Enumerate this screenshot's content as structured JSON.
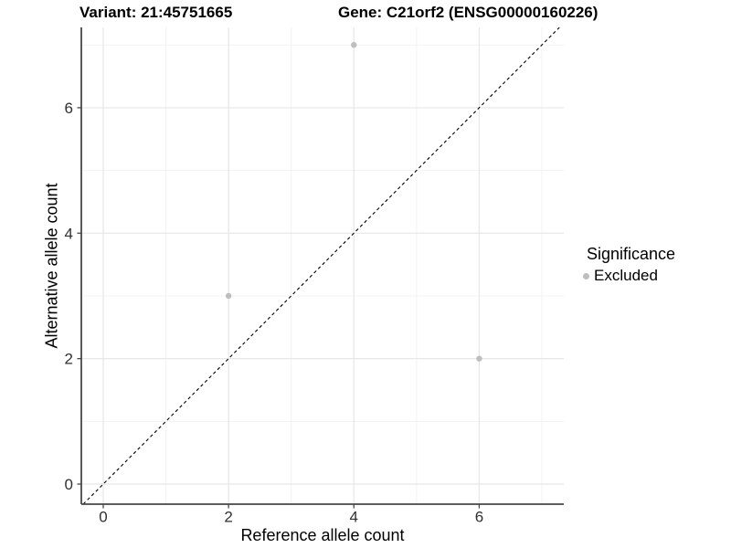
{
  "title": {
    "variant": "Variant: 21:45751665",
    "gene": "Gene: C21orf2 (ENSG00000160226)"
  },
  "chart_data": {
    "type": "scatter",
    "title": "Variant: 21:45751665   Gene: C21orf2 (ENSG00000160226)",
    "xlabel": "Reference allele count",
    "ylabel": "Alternative allele count",
    "x_ticks": [
      0,
      2,
      4,
      6
    ],
    "y_ticks": [
      0,
      2,
      4,
      6
    ],
    "x_minor_ticks": [
      1,
      3,
      5,
      7
    ],
    "y_minor_ticks": [
      1,
      3,
      5,
      7
    ],
    "xlim": [
      -0.35,
      7.35
    ],
    "ylim": [
      -0.32,
      7.28
    ],
    "grid": true,
    "identity_line": {
      "style": "dashed",
      "equation": "y = x",
      "color": "#000000"
    },
    "series": [
      {
        "name": "Excluded",
        "color": "#bebebe",
        "points": [
          {
            "x": 4,
            "y": 7
          },
          {
            "x": 2,
            "y": 3
          },
          {
            "x": 6,
            "y": 2
          }
        ]
      }
    ],
    "legend": {
      "title": "Significance",
      "position": "right",
      "entries": [
        {
          "label": "Excluded",
          "color": "#bebebe"
        }
      ]
    }
  },
  "colors": {
    "background": "#ffffff",
    "point": "#bebebe",
    "grid_major": "#e7e7e7",
    "grid_minor": "#f3f3f3",
    "axis_line": "#474747",
    "tick_label": "#303030",
    "dashed_line": "#000000",
    "title_text": "#000000"
  }
}
